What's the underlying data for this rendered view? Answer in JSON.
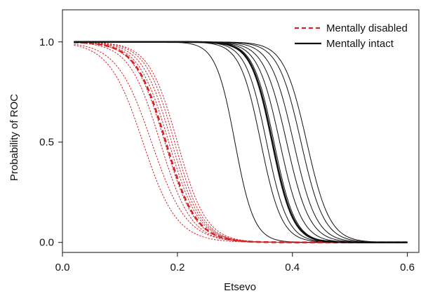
{
  "chart_data": {
    "type": "line",
    "title": "",
    "xlabel": "Etsevo",
    "ylabel": "Probability of ROC",
    "xlim": [
      0.0,
      0.62
    ],
    "ylim": [
      -0.05,
      1.16
    ],
    "x_ticks": [
      {
        "value": 0.0,
        "label": "0.0"
      },
      {
        "value": 0.2,
        "label": "0.2"
      },
      {
        "value": 0.4,
        "label": "0.4"
      },
      {
        "value": 0.6,
        "label": "0.6"
      }
    ],
    "y_ticks": [
      {
        "value": 0.0,
        "label": "0.0"
      },
      {
        "value": 0.5,
        "label": "0.5"
      },
      {
        "value": 1.0,
        "label": "1.0"
      }
    ],
    "grid": false,
    "legend": {
      "position": "top-right",
      "entries": [
        {
          "label": "Mentally disabled",
          "color": "#d0262b",
          "style": "dashed"
        },
        {
          "label": "Mentally intact",
          "color": "#111111",
          "style": "solid"
        }
      ]
    },
    "series": [
      {
        "group": "Mentally disabled",
        "kind": "mean",
        "midpoint": 0.18,
        "slope": 38,
        "color": "#d0262b",
        "dash": "dashed"
      },
      {
        "group": "Mentally disabled",
        "midpoint": 0.14,
        "slope": 34,
        "color": "#d0262b",
        "dash": "dotted"
      },
      {
        "group": "Mentally disabled",
        "midpoint": 0.155,
        "slope": 33,
        "color": "#d0262b",
        "dash": "dotted"
      },
      {
        "group": "Mentally disabled",
        "midpoint": 0.17,
        "slope": 37,
        "color": "#d0262b",
        "dash": "dotted"
      },
      {
        "group": "Mentally disabled",
        "midpoint": 0.178,
        "slope": 38,
        "color": "#d0262b",
        "dash": "dotted"
      },
      {
        "group": "Mentally disabled",
        "midpoint": 0.185,
        "slope": 38,
        "color": "#d0262b",
        "dash": "dotted"
      },
      {
        "group": "Mentally disabled",
        "midpoint": 0.19,
        "slope": 39,
        "color": "#d0262b",
        "dash": "dotted"
      },
      {
        "group": "Mentally disabled",
        "midpoint": 0.195,
        "slope": 40,
        "color": "#d0262b",
        "dash": "dotted"
      },
      {
        "group": "Mentally disabled",
        "midpoint": 0.2,
        "slope": 40,
        "color": "#d0262b",
        "dash": "dotted"
      },
      {
        "group": "Mentally intact",
        "kind": "mean",
        "midpoint": 0.365,
        "slope": 55,
        "color": "#111111",
        "dash": "solid"
      },
      {
        "group": "Mentally intact",
        "midpoint": 0.3,
        "slope": 60,
        "color": "#111111",
        "dash": "solid"
      },
      {
        "group": "Mentally intact",
        "midpoint": 0.345,
        "slope": 55,
        "color": "#111111",
        "dash": "solid"
      },
      {
        "group": "Mentally intact",
        "midpoint": 0.355,
        "slope": 55,
        "color": "#111111",
        "dash": "solid"
      },
      {
        "group": "Mentally intact",
        "midpoint": 0.368,
        "slope": 55,
        "color": "#111111",
        "dash": "solid"
      },
      {
        "group": "Mentally intact",
        "midpoint": 0.378,
        "slope": 52,
        "color": "#111111",
        "dash": "solid"
      },
      {
        "group": "Mentally intact",
        "midpoint": 0.39,
        "slope": 50,
        "color": "#111111",
        "dash": "solid"
      },
      {
        "group": "Mentally intact",
        "midpoint": 0.402,
        "slope": 50,
        "color": "#111111",
        "dash": "solid"
      },
      {
        "group": "Mentally intact",
        "midpoint": 0.415,
        "slope": 50,
        "color": "#111111",
        "dash": "solid"
      },
      {
        "group": "Mentally intact",
        "midpoint": 0.425,
        "slope": 50,
        "color": "#111111",
        "dash": "solid"
      }
    ]
  }
}
